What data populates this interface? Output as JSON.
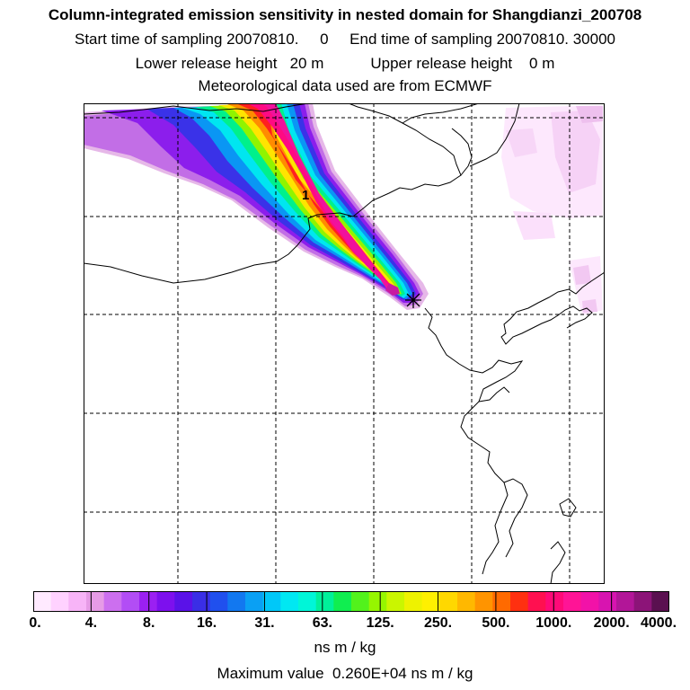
{
  "header": {
    "title": "Column-integrated emission sensitivity in nested domain for Shangdianzi_200708",
    "sampling": "Start time of sampling 20070810.     0     End time of sampling 20070810. 30000",
    "release": "Lower release height   20 m           Upper release height    0 m",
    "met": "Meteorological data used are from ECMWF"
  },
  "map": {
    "station_label": "1"
  },
  "legend": {
    "colors": [
      "#ffeaff",
      "#ffd2ff",
      "#f7b4f7",
      "#e69be6",
      "#cc6fef",
      "#b24df5",
      "#9b20f2",
      "#7d10ee",
      "#5a12e8",
      "#3a2ee6",
      "#2050ee",
      "#1278f0",
      "#0aa0f4",
      "#00c8f8",
      "#00e8f2",
      "#00f6d8",
      "#00f09a",
      "#10ee50",
      "#52f21c",
      "#96f600",
      "#caf600",
      "#eef200",
      "#fff000",
      "#ffd800",
      "#ffb800",
      "#ff9400",
      "#ff6a00",
      "#ff3010",
      "#ff1050",
      "#ff0a78",
      "#ff1496",
      "#f212a8",
      "#d814b0",
      "#b21698",
      "#8c1478",
      "#5a1050"
    ],
    "tick_labels": [
      "0.",
      "4.",
      "8.",
      "16.",
      "31.",
      "63.",
      "125.",
      "250.",
      "500.",
      "1000.",
      "2000.",
      "4000."
    ],
    "units": "ns m / kg",
    "max_value": "Maximum value  0.260E+04 ns m / kg"
  }
}
